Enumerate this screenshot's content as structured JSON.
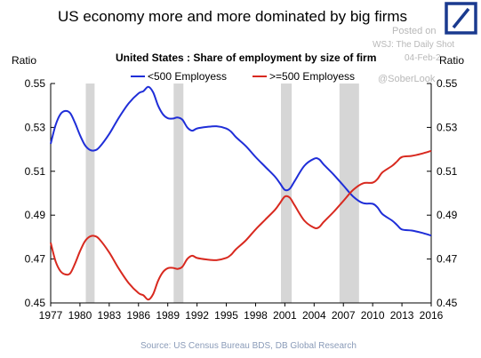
{
  "header": {
    "title": "US economy more and more dominated by big firms",
    "watermark_posted": "Posted on",
    "watermark_source": "WSJ: The Daily Shot",
    "watermark_date": "04-Feb-2",
    "watermark_handle": "@SoberLook"
  },
  "logo": {
    "name": "deutsche-bank-logo",
    "color": "#1a3a8f"
  },
  "footer": {
    "source": "Source: US Census Bureau BDS, DB Global Research"
  },
  "chart_data": {
    "type": "line",
    "title": "United States : Share of employment by size of firm",
    "ylabel_left": "Ratio",
    "ylabel_right": "Ratio",
    "ylim": [
      0.45,
      0.55
    ],
    "yticks": [
      "0.55",
      "0.53",
      "0.51",
      "0.49",
      "0.47",
      "0.45"
    ],
    "ytick_values": [
      0.55,
      0.53,
      0.51,
      0.49,
      0.47,
      0.45
    ],
    "xlim": [
      1977,
      2016
    ],
    "xticks": [
      "1977",
      "1980",
      "1983",
      "1986",
      "1989",
      "1992",
      "1995",
      "1998",
      "2001",
      "2004",
      "2007",
      "2010",
      "2013",
      "2016"
    ],
    "xtick_values": [
      1977,
      1980,
      1983,
      1986,
      1989,
      1992,
      1995,
      1998,
      2001,
      2004,
      2007,
      2010,
      2013,
      2016
    ],
    "legend_position": "top",
    "grid": false,
    "recessions": [
      [
        1980.6,
        1981.5
      ],
      [
        1989.6,
        1990.6
      ],
      [
        2000.6,
        2001.7
      ],
      [
        2006.6,
        2008.6
      ]
    ],
    "recession_color": "#d6d6d6",
    "series": [
      {
        "name": "<500 Employess",
        "color": "#1f2ed8",
        "points": [
          [
            1977,
            0.5225
          ],
          [
            1977.5,
            0.531
          ],
          [
            1978,
            0.536
          ],
          [
            1978.5,
            0.5375
          ],
          [
            1979,
            0.5365
          ],
          [
            1979.5,
            0.532
          ],
          [
            1980,
            0.5265
          ],
          [
            1980.5,
            0.522
          ],
          [
            1981,
            0.5198
          ],
          [
            1981.5,
            0.5195
          ],
          [
            1982,
            0.521
          ],
          [
            1983,
            0.527
          ],
          [
            1984,
            0.5345
          ],
          [
            1985,
            0.541
          ],
          [
            1986,
            0.5455
          ],
          [
            1986.5,
            0.5465
          ],
          [
            1987,
            0.5485
          ],
          [
            1987.5,
            0.546
          ],
          [
            1988,
            0.54
          ],
          [
            1988.5,
            0.536
          ],
          [
            1989,
            0.5342
          ],
          [
            1989.5,
            0.534
          ],
          [
            1990,
            0.5345
          ],
          [
            1990.5,
            0.5335
          ],
          [
            1991,
            0.53
          ],
          [
            1991.5,
            0.5285
          ],
          [
            1992,
            0.5295
          ],
          [
            1993,
            0.5302
          ],
          [
            1994,
            0.5305
          ],
          [
            1995,
            0.5295
          ],
          [
            1995.5,
            0.528
          ],
          [
            1996,
            0.5255
          ],
          [
            1997,
            0.5215
          ],
          [
            1998,
            0.5165
          ],
          [
            1999,
            0.512
          ],
          [
            2000,
            0.5075
          ],
          [
            2000.5,
            0.5045
          ],
          [
            2001,
            0.5015
          ],
          [
            2001.5,
            0.502
          ],
          [
            2002,
            0.5055
          ],
          [
            2003,
            0.5125
          ],
          [
            2004,
            0.5157
          ],
          [
            2004.5,
            0.5155
          ],
          [
            2005,
            0.513
          ],
          [
            2006,
            0.5085
          ],
          [
            2007,
            0.5035
          ],
          [
            2008,
            0.4985
          ],
          [
            2009,
            0.4955
          ],
          [
            2010,
            0.4952
          ],
          [
            2010.5,
            0.4935
          ],
          [
            2011,
            0.4905
          ],
          [
            2012,
            0.4875
          ],
          [
            2012.5,
            0.4855
          ],
          [
            2013,
            0.4835
          ],
          [
            2014,
            0.483
          ],
          [
            2015,
            0.482
          ],
          [
            2016,
            0.4807
          ]
        ]
      },
      {
        "name": ">=500 Employess",
        "color": "#d8291f",
        "points": [
          [
            1977,
            0.4775
          ],
          [
            1977.5,
            0.469
          ],
          [
            1978,
            0.4645
          ],
          [
            1978.5,
            0.463
          ],
          [
            1979,
            0.4635
          ],
          [
            1979.5,
            0.468
          ],
          [
            1980,
            0.4735
          ],
          [
            1980.5,
            0.478
          ],
          [
            1981,
            0.4802
          ],
          [
            1981.5,
            0.4805
          ],
          [
            1982,
            0.479
          ],
          [
            1983,
            0.473
          ],
          [
            1984,
            0.4655
          ],
          [
            1985,
            0.459
          ],
          [
            1986,
            0.4545
          ],
          [
            1986.5,
            0.4535
          ],
          [
            1987,
            0.4515
          ],
          [
            1987.5,
            0.454
          ],
          [
            1988,
            0.46
          ],
          [
            1988.5,
            0.464
          ],
          [
            1989,
            0.4658
          ],
          [
            1989.5,
            0.466
          ],
          [
            1990,
            0.4655
          ],
          [
            1990.5,
            0.4665
          ],
          [
            1991,
            0.47
          ],
          [
            1991.5,
            0.4715
          ],
          [
            1992,
            0.4705
          ],
          [
            1993,
            0.4698
          ],
          [
            1994,
            0.4695
          ],
          [
            1995,
            0.4705
          ],
          [
            1995.5,
            0.472
          ],
          [
            1996,
            0.4745
          ],
          [
            1997,
            0.4785
          ],
          [
            1998,
            0.4835
          ],
          [
            1999,
            0.488
          ],
          [
            2000,
            0.4925
          ],
          [
            2000.5,
            0.4955
          ],
          [
            2001,
            0.4985
          ],
          [
            2001.5,
            0.498
          ],
          [
            2002,
            0.4945
          ],
          [
            2003,
            0.4875
          ],
          [
            2004,
            0.4843
          ],
          [
            2004.5,
            0.4845
          ],
          [
            2005,
            0.487
          ],
          [
            2006,
            0.4915
          ],
          [
            2007,
            0.4965
          ],
          [
            2008,
            0.5015
          ],
          [
            2009,
            0.5045
          ],
          [
            2010,
            0.5048
          ],
          [
            2010.5,
            0.5065
          ],
          [
            2011,
            0.5095
          ],
          [
            2012,
            0.5125
          ],
          [
            2012.5,
            0.5145
          ],
          [
            2013,
            0.5165
          ],
          [
            2014,
            0.517
          ],
          [
            2015,
            0.518
          ],
          [
            2016,
            0.5193
          ]
        ]
      }
    ]
  }
}
